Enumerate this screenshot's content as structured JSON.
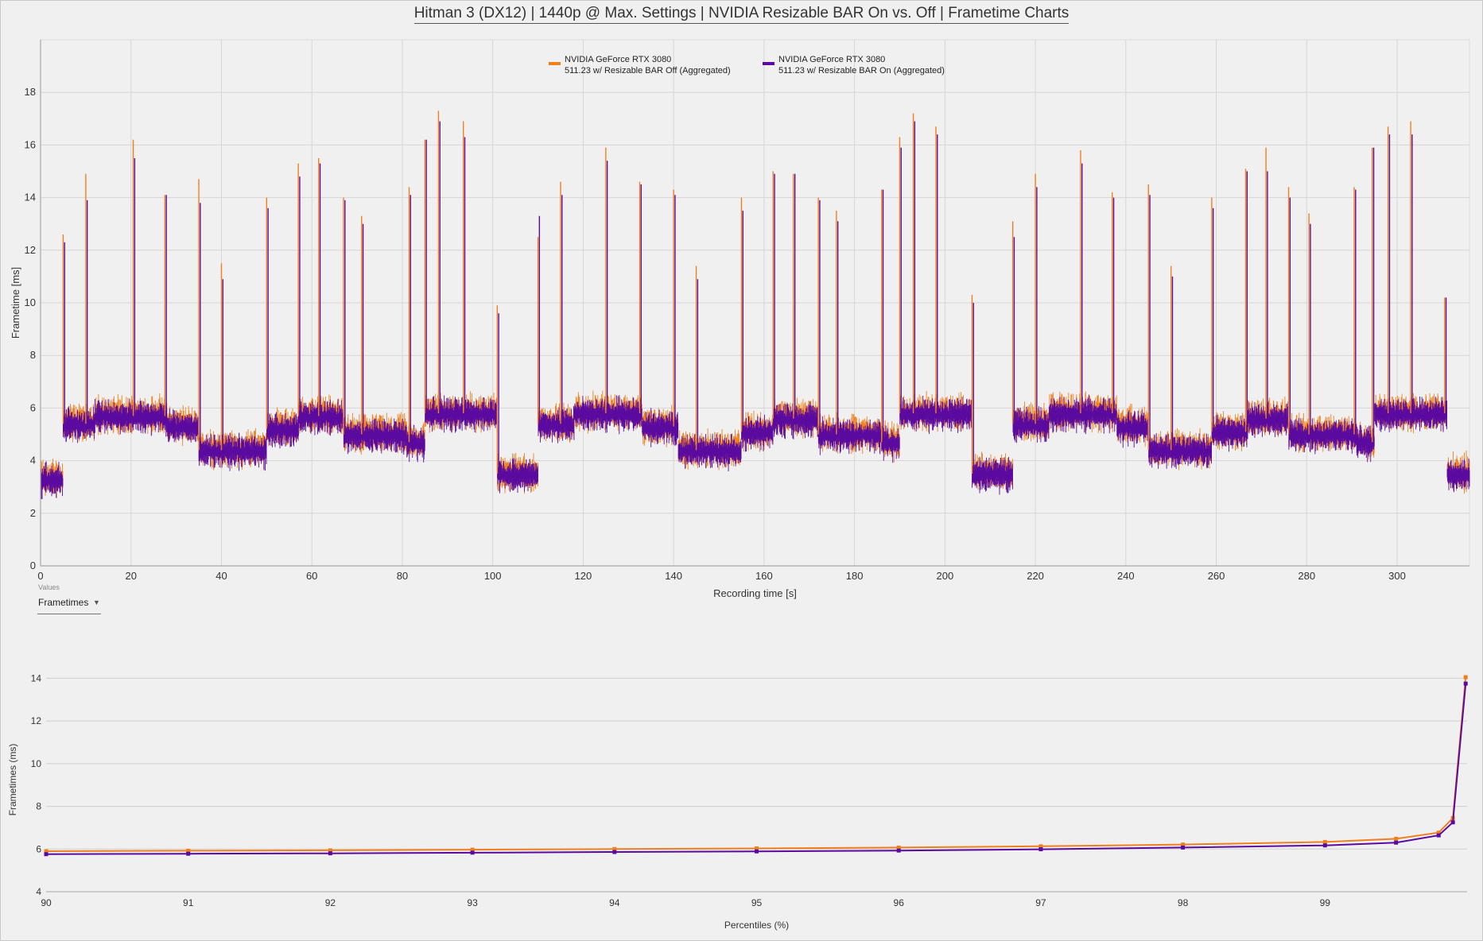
{
  "title": "Hitman 3 (DX12) | 1440p @ Max. Settings | NVIDIA Resizable BAR On vs. Off | Frametime Charts",
  "colors": {
    "off": "#f0801e",
    "on": "#5b0aa0",
    "grid": "#d6d6d6",
    "axis": "#a8a8a8"
  },
  "values_selector": {
    "caption": "Values",
    "selected": "Frametimes"
  },
  "chart_data": [
    {
      "type": "line",
      "xlabel": "Recording time [s]",
      "ylabel": "Frametime [ms]",
      "xlim": [
        0,
        316
      ],
      "ylim": [
        0,
        20
      ],
      "xticks": [
        "0",
        "20",
        "40",
        "60",
        "80",
        "100",
        "120",
        "140",
        "160",
        "180",
        "200",
        "220",
        "240",
        "260",
        "280",
        "300"
      ],
      "yticks": [
        "0",
        "2",
        "4",
        "6",
        "8",
        "10",
        "12",
        "14",
        "16",
        "18"
      ],
      "grid": true,
      "legend_position": "top-center",
      "series": [
        {
          "name": "NVIDIA GeForce RTX 3080",
          "subname": "511.23 w/ Resizable BAR Off (Aggregated)",
          "key": "off"
        },
        {
          "name": "NVIDIA GeForce RTX 3080",
          "subname": "511.23 w/ Resizable BAR On (Aggregated)",
          "key": "on"
        }
      ],
      "segments": [
        {
          "x": [
            0,
            5
          ],
          "level": 3.3
        },
        {
          "x": [
            5,
            12
          ],
          "level": 5.4
        },
        {
          "x": [
            12,
            28
          ],
          "level": 5.7
        },
        {
          "x": [
            28,
            35
          ],
          "level": 5.3
        },
        {
          "x": [
            35,
            50
          ],
          "level": 4.4
        },
        {
          "x": [
            50,
            57
          ],
          "level": 5.2
        },
        {
          "x": [
            57,
            67
          ],
          "level": 5.7
        },
        {
          "x": [
            67,
            81
          ],
          "level": 5.0
        },
        {
          "x": [
            81,
            85
          ],
          "level": 4.7
        },
        {
          "x": [
            85,
            101
          ],
          "level": 5.8
        },
        {
          "x": [
            101,
            110
          ],
          "level": 3.5
        },
        {
          "x": [
            110,
            118
          ],
          "level": 5.4
        },
        {
          "x": [
            118,
            133
          ],
          "level": 5.8
        },
        {
          "x": [
            133,
            141
          ],
          "level": 5.3
        },
        {
          "x": [
            141,
            155
          ],
          "level": 4.4
        },
        {
          "x": [
            155,
            162
          ],
          "level": 5.1
        },
        {
          "x": [
            162,
            172
          ],
          "level": 5.6
        },
        {
          "x": [
            172,
            186
          ],
          "level": 5.0
        },
        {
          "x": [
            186,
            190
          ],
          "level": 4.7
        },
        {
          "x": [
            190,
            206
          ],
          "level": 5.8
        },
        {
          "x": [
            206,
            215
          ],
          "level": 3.5
        },
        {
          "x": [
            215,
            223
          ],
          "level": 5.4
        },
        {
          "x": [
            223,
            238
          ],
          "level": 5.8
        },
        {
          "x": [
            238,
            245
          ],
          "level": 5.3
        },
        {
          "x": [
            245,
            259
          ],
          "level": 4.4
        },
        {
          "x": [
            259,
            267
          ],
          "level": 5.1
        },
        {
          "x": [
            267,
            276
          ],
          "level": 5.6
        },
        {
          "x": [
            276,
            291
          ],
          "level": 5.0
        },
        {
          "x": [
            291,
            295
          ],
          "level": 4.7
        },
        {
          "x": [
            295,
            311
          ],
          "level": 5.8
        },
        {
          "x": [
            311,
            316
          ],
          "level": 3.5
        }
      ],
      "spikes": [
        [
          5.0,
          12.6,
          12.3
        ],
        [
          10.0,
          14.9,
          13.9
        ],
        [
          20.5,
          16.2,
          15.5
        ],
        [
          27.5,
          14.1,
          14.1
        ],
        [
          35.0,
          14.7,
          13.8
        ],
        [
          40.0,
          11.5,
          10.9
        ],
        [
          50.0,
          14.0,
          13.6
        ],
        [
          57.0,
          15.3,
          14.8
        ],
        [
          61.5,
          15.5,
          15.3
        ],
        [
          67.0,
          14.0,
          13.9
        ],
        [
          71.0,
          13.3,
          13.0
        ],
        [
          81.5,
          14.4,
          14.1
        ],
        [
          85.0,
          16.2,
          16.2
        ],
        [
          88.0,
          17.3,
          16.9
        ],
        [
          93.5,
          16.9,
          16.3
        ],
        [
          101.0,
          9.9,
          9.6
        ],
        [
          110.0,
          12.5,
          13.3
        ],
        [
          115.0,
          14.6,
          14.1
        ],
        [
          125.0,
          15.9,
          15.4
        ],
        [
          132.5,
          14.6,
          14.5
        ],
        [
          140.0,
          14.3,
          14.1
        ],
        [
          145.0,
          11.4,
          10.9
        ],
        [
          155.0,
          14.0,
          13.5
        ],
        [
          162.0,
          15.0,
          14.9
        ],
        [
          166.5,
          14.9,
          14.9
        ],
        [
          172.0,
          14.0,
          13.9
        ],
        [
          176.0,
          13.5,
          13.1
        ],
        [
          186.0,
          14.3,
          14.3
        ],
        [
          190.0,
          16.3,
          15.9
        ],
        [
          193.0,
          17.2,
          16.9
        ],
        [
          198.0,
          16.7,
          16.4
        ],
        [
          206.0,
          10.3,
          10.0
        ],
        [
          215.0,
          13.1,
          12.5
        ],
        [
          220.0,
          14.9,
          14.4
        ],
        [
          230.0,
          15.8,
          15.3
        ],
        [
          237.0,
          14.2,
          14.0
        ],
        [
          245.0,
          14.5,
          14.1
        ],
        [
          250.0,
          11.4,
          11.0
        ],
        [
          259.0,
          14.0,
          13.6
        ],
        [
          266.5,
          15.1,
          15.0
        ],
        [
          271.0,
          15.9,
          15.0
        ],
        [
          276.0,
          14.4,
          14.0
        ],
        [
          280.5,
          13.4,
          13.0
        ],
        [
          290.5,
          14.4,
          14.3
        ],
        [
          294.5,
          15.9,
          15.9
        ],
        [
          298.0,
          16.7,
          16.4
        ],
        [
          303.0,
          16.9,
          16.4
        ],
        [
          310.5,
          10.2,
          10.2
        ]
      ]
    },
    {
      "type": "line",
      "xlabel": "Percentiles (%)",
      "ylabel": "Frametimes (ms)",
      "xlim": [
        90,
        100
      ],
      "ylim": [
        4,
        14.5
      ],
      "xticks": [
        "90",
        "91",
        "92",
        "93",
        "94",
        "95",
        "96",
        "97",
        "98",
        "99"
      ],
      "yticks": [
        "4",
        "6",
        "8",
        "10",
        "12",
        "14"
      ],
      "grid": true,
      "series": [
        {
          "key": "off",
          "x": [
            90,
            91,
            92,
            93,
            94,
            95,
            96,
            97,
            98,
            99,
            99.5,
            99.8,
            99.9,
            99.99
          ],
          "values": [
            5.9,
            5.92,
            5.94,
            5.97,
            6.0,
            6.03,
            6.07,
            6.13,
            6.21,
            6.33,
            6.48,
            6.77,
            7.45,
            14.05
          ]
        },
        {
          "key": "on",
          "x": [
            90,
            91,
            92,
            93,
            94,
            95,
            96,
            97,
            98,
            99,
            99.5,
            99.8,
            99.9,
            99.99
          ],
          "values": [
            5.76,
            5.78,
            5.8,
            5.83,
            5.86,
            5.89,
            5.93,
            5.99,
            6.07,
            6.17,
            6.3,
            6.64,
            7.25,
            13.75
          ]
        }
      ]
    }
  ]
}
